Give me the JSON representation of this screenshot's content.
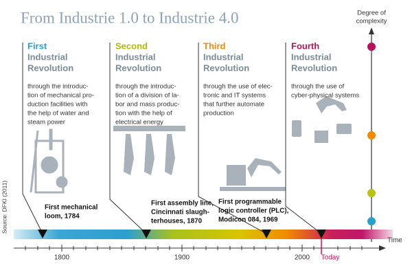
{
  "title": "From Industrie 1.0 to Industrie 4.0",
  "complexity_axis": {
    "label_lines": [
      "Degree of",
      "complexity"
    ]
  },
  "revolutions": [
    {
      "ordinal": "First",
      "heading_lines": [
        "Industrial",
        "Revolution"
      ],
      "description_lines": [
        "through the introduc-",
        "tion of mechanical pro-",
        "duction facilities with",
        "the help of water and",
        "steam power"
      ],
      "milestone_lines": [
        "First mechanical",
        "loom, 1784"
      ]
    },
    {
      "ordinal": "Second",
      "heading_lines": [
        "Industrial",
        "Revolution"
      ],
      "description_lines": [
        "through the introduc-",
        "tion of a division of la-",
        "bor and mass produc-",
        "tion with the help of",
        "electrical energy"
      ],
      "milestone_lines": [
        "First assembly line,",
        "Cincinnati slaugh-",
        "terhouses, 1870"
      ]
    },
    {
      "ordinal": "Third",
      "heading_lines": [
        "Industrial",
        "Revolution"
      ],
      "description_lines": [
        "through the use of elec-",
        "tronic and IT systems",
        "that further automate",
        "production"
      ],
      "milestone_lines": [
        "First programmable",
        "logic controller (PLC),",
        "Modicon 084, 1969"
      ]
    },
    {
      "ordinal": "Fourth",
      "heading_lines": [
        "Industrial",
        "Revolution"
      ],
      "description_lines": [
        "through the use of",
        "cyber-physical systems"
      ]
    }
  ],
  "timeline": {
    "ticks": [
      "1800",
      "1900",
      "2000"
    ],
    "today": "Today",
    "axis_label": "Time"
  },
  "source": "Source: DFKI (2011)"
}
